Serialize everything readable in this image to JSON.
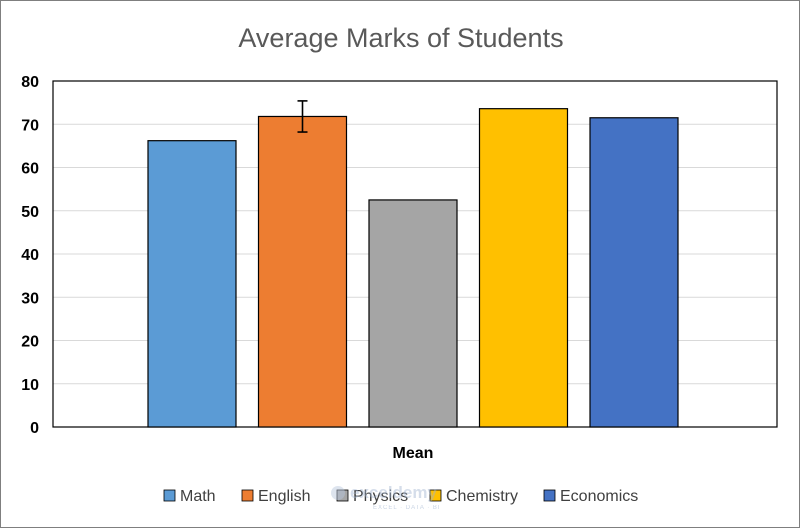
{
  "chart_data": {
    "type": "bar",
    "title": "Average Marks of Students",
    "categories": [
      "Mean"
    ],
    "series": [
      {
        "name": "Math",
        "values": [
          66.2
        ],
        "color": "#5b9bd5"
      },
      {
        "name": "English",
        "values": [
          71.8
        ],
        "color": "#ed7d31",
        "error": [
          3.6
        ]
      },
      {
        "name": "Physics",
        "values": [
          52.5
        ],
        "color": "#a5a5a5"
      },
      {
        "name": "Chemistry",
        "values": [
          73.6
        ],
        "color": "#ffc000"
      },
      {
        "name": "Economics",
        "values": [
          71.5
        ],
        "color": "#4472c4"
      }
    ],
    "xlabel": "",
    "ylabel": "",
    "ylim": [
      0,
      80
    ],
    "yticks": [
      "0",
      "10",
      "20",
      "30",
      "40",
      "50",
      "60",
      "70",
      "80"
    ],
    "grid": true,
    "legend_position": "bottom"
  },
  "watermark": {
    "logo": "exceldemy",
    "tagline": "EXCEL · DATA · BI"
  }
}
